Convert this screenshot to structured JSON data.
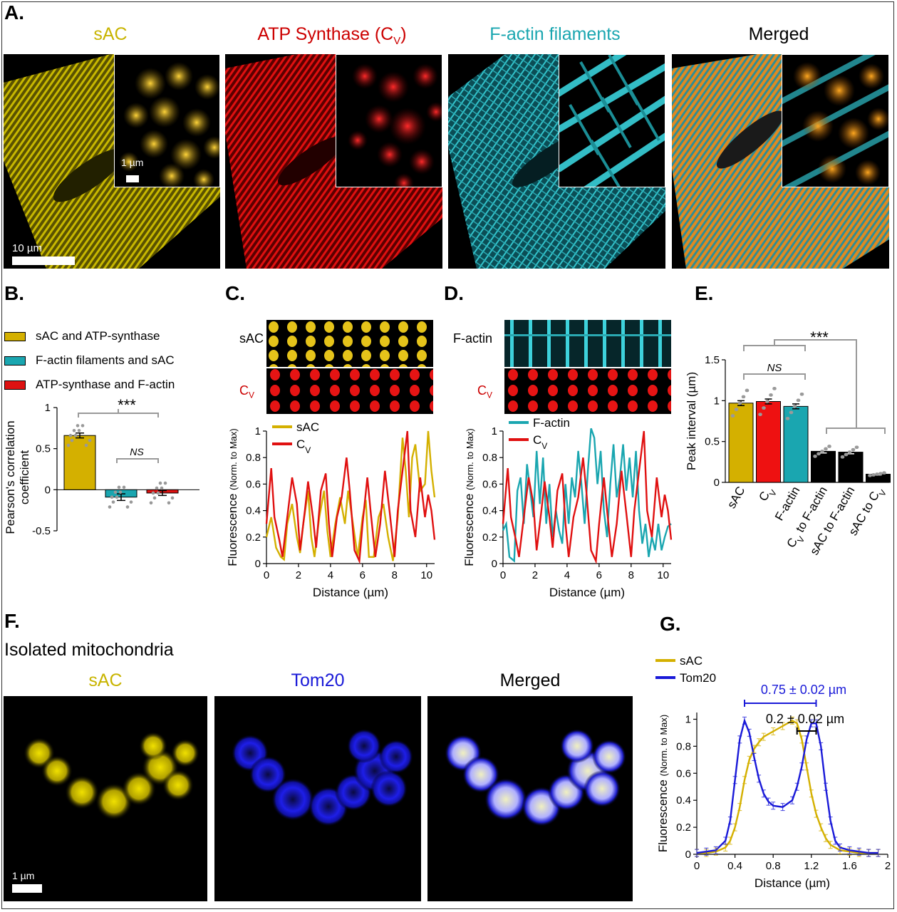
{
  "panel_a": {
    "label": "A.",
    "titles": {
      "sac": "sAC",
      "atp": "ATP Synthase (C",
      "atp_sub": "V",
      "atp_close": ")",
      "factin": "F-actin filaments",
      "merged": "Merged"
    },
    "colors": {
      "sac": "#c8b400",
      "atp": "#cc0000",
      "factin": "#1aa6b0",
      "merged": "#000000"
    },
    "inset_scale": "1 µm",
    "main_scale": "10 µm"
  },
  "panel_b": {
    "label": "B.",
    "legend": [
      "sAC and ATP-synthase",
      "F-actin filaments and sAC",
      "ATP-synthase and F-actin"
    ],
    "ylabel_line1": "Pearson's correlation",
    "ylabel_line2": "coefficient",
    "sig_top": "***",
    "sig_ns": "NS"
  },
  "panel_c": {
    "label": "C.",
    "strip1": "sAC",
    "strip2": "C",
    "strip2_sub": "V"
  },
  "panel_d": {
    "label": "D.",
    "strip1": "F-actin",
    "strip2": "C",
    "strip2_sub": "V"
  },
  "panel_e": {
    "label": "E.",
    "sig_top": "***",
    "sig_ns": "NS"
  },
  "panel_f": {
    "label": "F.",
    "subtitle": "Isolated mitochondria",
    "titles": {
      "sac": "sAC",
      "tom20": "Tom20",
      "merged": "Merged"
    },
    "scale": "1 µm"
  },
  "panel_g": {
    "label": "G.",
    "ann_blue": "0.75 ± 0.02 µm",
    "ann_black": "0.2 ± 0.02 µm"
  },
  "chart_data": [
    {
      "id": "B",
      "type": "bar",
      "categories": [
        "sAC and ATP-synthase",
        "F-actin filaments and sAC",
        "ATP-synthase and F-actin"
      ],
      "values": [
        0.66,
        -0.09,
        -0.04
      ],
      "errors": [
        0.03,
        0.04,
        0.03
      ],
      "colors": [
        "#d4b000",
        "#1aa6b0",
        "#dd1111"
      ],
      "ylabel": "Pearson's correlation coefficient",
      "ylim": [
        -0.5,
        1
      ],
      "yticks": [
        -0.5,
        0,
        0.5,
        1
      ],
      "ytick_labels": [
        "-0.5",
        "0",
        "0.5",
        "1"
      ]
    },
    {
      "id": "C",
      "type": "line",
      "title": "",
      "xlabel": "Distance (µm)",
      "ylabel": "Fluorescence",
      "ylabel_small": "(Norm. to Max)",
      "xlim": [
        0,
        10.5
      ],
      "ylim": [
        0,
        1
      ],
      "xticks": [
        0,
        2,
        4,
        6,
        8,
        10
      ],
      "yticks": [
        0,
        0.2,
        0.4,
        0.6,
        0.8,
        1
      ],
      "ytick_labels": [
        "0",
        "0.2",
        "0.4",
        "0.6",
        "0.8",
        "1"
      ],
      "series": [
        {
          "name": "sAC",
          "color": "#d4b000",
          "x": [
            0,
            0.3,
            0.6,
            0.9,
            1.1,
            1.3,
            1.6,
            1.9,
            2.1,
            2.3,
            2.6,
            2.8,
            3.0,
            3.3,
            3.6,
            3.8,
            4.0,
            4.3,
            4.6,
            4.9,
            5.1,
            5.4,
            5.7,
            6.0,
            6.2,
            6.4,
            6.7,
            7.0,
            7.3,
            7.6,
            7.9,
            8.2,
            8.5,
            8.7,
            8.9,
            9.1,
            9.3,
            9.6,
            9.9,
            10.1,
            10.3,
            10.5
          ],
          "y": [
            0.2,
            0.35,
            0.12,
            0.05,
            0.03,
            0.3,
            0.45,
            0.2,
            0.08,
            0.3,
            0.55,
            0.2,
            0.05,
            0.35,
            0.55,
            0.25,
            0.05,
            0.3,
            0.5,
            0.3,
            0.55,
            0.3,
            0.05,
            0.35,
            0.48,
            0.05,
            0.05,
            0.35,
            0.45,
            0.2,
            0.02,
            0.35,
            0.95,
            0.7,
            0.35,
            0.8,
            0.9,
            0.55,
            0.6,
            1.0,
            0.7,
            0.5
          ]
        },
        {
          "name": "C",
          "name_sub": "V",
          "color": "#e01010",
          "x": [
            0,
            0.3,
            0.5,
            0.8,
            1.0,
            1.3,
            1.6,
            1.9,
            2.1,
            2.4,
            2.6,
            2.9,
            3.1,
            3.4,
            3.7,
            3.9,
            4.1,
            4.4,
            4.7,
            5.0,
            5.2,
            5.5,
            5.8,
            6.0,
            6.3,
            6.5,
            6.8,
            7.1,
            7.4,
            7.7,
            8.0,
            8.2,
            8.5,
            8.8,
            9.0,
            9.3,
            9.6,
            9.9,
            10.1,
            10.3,
            10.5
          ],
          "y": [
            0.3,
            0.72,
            0.35,
            0.18,
            0.05,
            0.35,
            0.65,
            0.45,
            0.1,
            0.4,
            0.62,
            0.35,
            0.12,
            0.55,
            0.68,
            0.3,
            0.05,
            0.35,
            0.5,
            0.8,
            0.55,
            0.1,
            0.02,
            0.3,
            0.65,
            0.4,
            0.05,
            0.3,
            0.7,
            0.38,
            0.05,
            0.4,
            0.7,
            1.0,
            0.4,
            0.2,
            0.65,
            0.35,
            0.52,
            0.4,
            0.18
          ]
        }
      ]
    },
    {
      "id": "D",
      "type": "line",
      "xlabel": "Distance (µm)",
      "ylabel": "Fluorescence",
      "ylabel_small": "(Norm. to Max)",
      "xlim": [
        0,
        10.5
      ],
      "ylim": [
        0,
        1
      ],
      "xticks": [
        0,
        2,
        4,
        6,
        8,
        10
      ],
      "yticks": [
        0,
        0.2,
        0.4,
        0.6,
        0.8,
        1
      ],
      "ytick_labels": [
        "0",
        "0.2",
        "0.4",
        "0.6",
        "0.8",
        "1"
      ],
      "series": [
        {
          "name": "F-actin",
          "color": "#1aa6b0",
          "x": [
            0,
            0.2,
            0.4,
            0.7,
            0.9,
            1.1,
            1.3,
            1.5,
            1.7,
            1.9,
            2.1,
            2.3,
            2.5,
            2.7,
            2.9,
            3.1,
            3.3,
            3.5,
            3.7,
            3.9,
            4.1,
            4.3,
            4.5,
            4.7,
            4.9,
            5.1,
            5.3,
            5.5,
            5.7,
            5.9,
            6.1,
            6.3,
            6.5,
            6.7,
            6.9,
            7.1,
            7.3,
            7.5,
            7.7,
            7.9,
            8.1,
            8.3,
            8.5,
            8.7,
            8.9,
            9.1,
            9.3,
            9.5,
            9.7,
            9.9,
            10.1,
            10.3,
            10.5
          ],
          "y": [
            0.25,
            0.3,
            0.05,
            0.02,
            0.55,
            0.65,
            0.3,
            0.75,
            0.55,
            0.35,
            0.85,
            0.45,
            0.8,
            0.3,
            0.6,
            0.2,
            0.4,
            0.25,
            0.15,
            0.6,
            0.3,
            0.65,
            0.5,
            0.85,
            0.6,
            0.3,
            0.7,
            1.02,
            0.95,
            0.6,
            0.85,
            0.4,
            0.2,
            0.6,
            0.9,
            0.5,
            0.65,
            0.9,
            0.55,
            0.8,
            0.5,
            0.85,
            0.4,
            0.15,
            0.3,
            0.05,
            0.2,
            0.1,
            0.3,
            0.1,
            0.2,
            0.28,
            0.3
          ]
        },
        {
          "name": "C",
          "name_sub": "V",
          "color": "#e01010",
          "x": [
            0,
            0.3,
            0.5,
            0.8,
            1.0,
            1.3,
            1.6,
            1.9,
            2.1,
            2.4,
            2.6,
            2.9,
            3.1,
            3.4,
            3.7,
            3.9,
            4.1,
            4.4,
            4.7,
            5.0,
            5.2,
            5.5,
            5.8,
            6.0,
            6.3,
            6.5,
            6.8,
            7.1,
            7.4,
            7.7,
            8.0,
            8.2,
            8.5,
            8.8,
            9.0,
            9.3,
            9.6,
            9.9,
            10.1,
            10.3,
            10.5
          ],
          "y": [
            0.3,
            0.72,
            0.35,
            0.18,
            0.05,
            0.35,
            0.65,
            0.45,
            0.1,
            0.4,
            0.62,
            0.35,
            0.12,
            0.55,
            0.68,
            0.3,
            0.05,
            0.35,
            0.5,
            0.8,
            0.55,
            0.1,
            0.02,
            0.3,
            0.65,
            0.4,
            0.05,
            0.3,
            0.7,
            0.38,
            0.05,
            0.4,
            0.7,
            1.0,
            0.4,
            0.2,
            0.65,
            0.35,
            0.52,
            0.4,
            0.18
          ]
        }
      ]
    },
    {
      "id": "E",
      "type": "bar",
      "categories": [
        "sAC",
        "C_V",
        "F-actin",
        "C_V to F-actin",
        "sAC to F-actin",
        "sAC to C_V"
      ],
      "values": [
        0.97,
        0.99,
        0.93,
        0.38,
        0.37,
        0.1
      ],
      "errors": [
        0.03,
        0.03,
        0.03,
        0.02,
        0.02,
        0.01
      ],
      "colors": [
        "#d4b000",
        "#ee1111",
        "#1aa6b0",
        "#000000",
        "#000000",
        "#000000"
      ],
      "ylabel": "Peak interval (µm)",
      "ylim": [
        0,
        1.5
      ],
      "yticks": [
        0,
        0.5,
        1,
        1.5
      ],
      "ytick_labels": [
        "0",
        "0.5",
        "1",
        "1.5"
      ]
    },
    {
      "id": "G",
      "type": "line",
      "xlabel": "Distance (µm)",
      "ylabel": "Fluorescence",
      "ylabel_small": "(Norm. to Max)",
      "xlim": [
        0,
        2
      ],
      "ylim": [
        0,
        1.05
      ],
      "xticks": [
        0,
        0.4,
        0.8,
        1.2,
        1.6,
        2
      ],
      "xtick_labels": [
        "0",
        "0.4",
        "0.8",
        "1.2",
        "1.6",
        "2"
      ],
      "yticks": [
        0,
        0.2,
        0.4,
        0.6,
        0.8,
        1
      ],
      "ytick_labels": [
        "0",
        "0.2",
        "0.4",
        "0.6",
        "0.8",
        "1"
      ],
      "series": [
        {
          "name": "sAC",
          "color": "#d4b000",
          "x": [
            0,
            0.1,
            0.2,
            0.3,
            0.35,
            0.4,
            0.45,
            0.5,
            0.55,
            0.6,
            0.65,
            0.7,
            0.8,
            0.9,
            1.0,
            1.05,
            1.1,
            1.15,
            1.2,
            1.25,
            1.3,
            1.35,
            1.4,
            1.5,
            1.6,
            1.7,
            1.8,
            1.9
          ],
          "y": [
            0.01,
            0.01,
            0.02,
            0.05,
            0.1,
            0.2,
            0.35,
            0.55,
            0.7,
            0.78,
            0.83,
            0.87,
            0.91,
            0.95,
            0.99,
            0.97,
            0.85,
            0.65,
            0.45,
            0.3,
            0.2,
            0.12,
            0.07,
            0.03,
            0.02,
            0.01,
            0.01,
            0.01
          ]
        },
        {
          "name": "Tom20",
          "color": "#1a1ad8",
          "x": [
            0,
            0.1,
            0.2,
            0.3,
            0.35,
            0.4,
            0.45,
            0.5,
            0.55,
            0.6,
            0.65,
            0.7,
            0.75,
            0.8,
            0.9,
            1.0,
            1.05,
            1.1,
            1.15,
            1.2,
            1.25,
            1.3,
            1.35,
            1.4,
            1.45,
            1.5,
            1.6,
            1.7,
            1.8,
            1.9
          ],
          "y": [
            0.01,
            0.02,
            0.03,
            0.1,
            0.25,
            0.55,
            0.85,
            0.99,
            0.9,
            0.72,
            0.56,
            0.45,
            0.39,
            0.36,
            0.35,
            0.4,
            0.5,
            0.65,
            0.85,
            0.97,
            0.97,
            0.8,
            0.5,
            0.25,
            0.1,
            0.05,
            0.03,
            0.02,
            0.01,
            0.01
          ]
        }
      ]
    }
  ]
}
